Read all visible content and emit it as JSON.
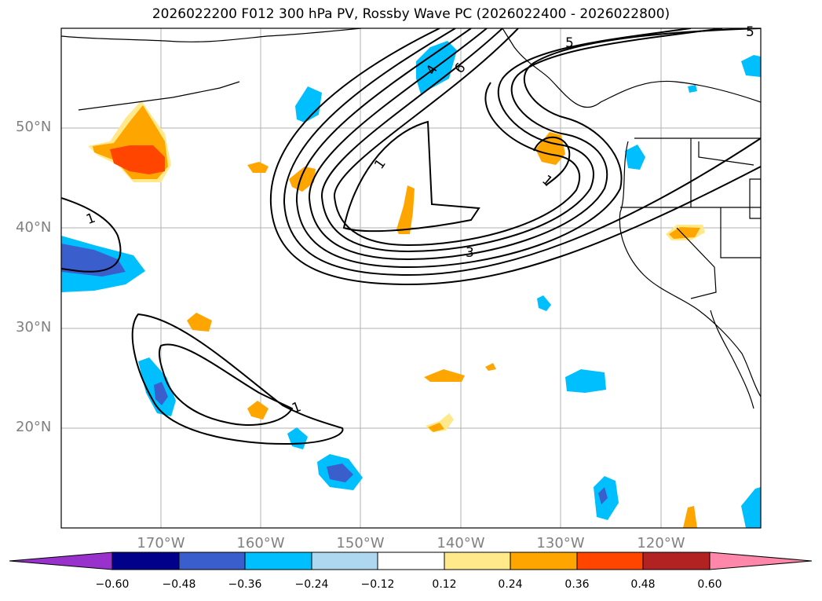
{
  "title": "2026022200 F012 300 hPa PV, Rossby Wave PC (2026022400 - 2026022800)",
  "map": {
    "lon_labels": [
      "170°W",
      "160°W",
      "150°W",
      "140°W",
      "130°W",
      "120°W"
    ],
    "lat_labels": [
      "50°N",
      "40°N",
      "30°N",
      "20°N"
    ],
    "contour_labels": [
      "1",
      "1",
      "1",
      "1",
      "3",
      "4",
      "5",
      "6",
      "5"
    ],
    "coastline_color": "#000000",
    "grid_color": "#b0b0b0"
  },
  "colorbar": {
    "ticks": [
      "−0.60",
      "−0.48",
      "−0.36",
      "−0.24",
      "−0.12",
      "0.12",
      "0.24",
      "0.36",
      "0.48",
      "0.60"
    ],
    "colors": [
      "#9932cc",
      "#00008b",
      "#3a5fcd",
      "#00bfff",
      "#add8f0",
      "#ffffff",
      "#ffe98a",
      "#ffa500",
      "#ff4500",
      "#b22222",
      "#ff88aa"
    ]
  }
}
